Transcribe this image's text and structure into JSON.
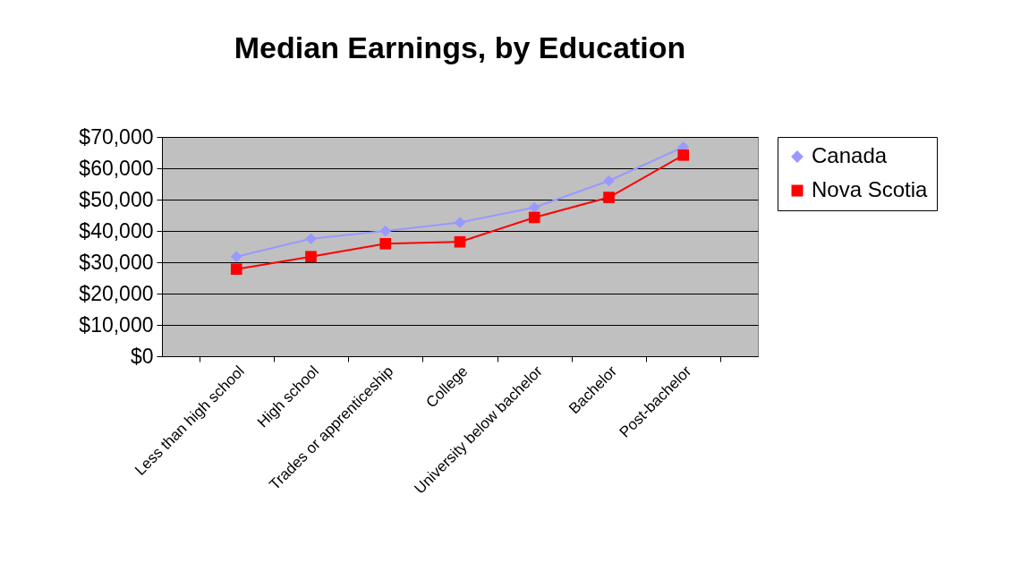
{
  "chart_data": {
    "type": "line",
    "title": "Median Earnings, by Education",
    "categories": [
      "Less than high school",
      "High school",
      "Trades or apprenticeship",
      "College",
      "University below bachelor",
      "Bachelor",
      "Post-bachelor"
    ],
    "series": [
      {
        "name": "Canada",
        "color": "#9999ff",
        "marker": "diamond",
        "values": [
          31800,
          37500,
          40000,
          42700,
          47500,
          56000,
          66800
        ]
      },
      {
        "name": "Nova Scotia",
        "color": "#ff0000",
        "marker": "square",
        "values": [
          27800,
          31800,
          35900,
          36500,
          44300,
          50700,
          64200
        ]
      }
    ],
    "ylim": [
      0,
      70000
    ],
    "yticks": [
      {
        "value": 0,
        "label": "$0"
      },
      {
        "value": 10000,
        "label": "$10,000"
      },
      {
        "value": 20000,
        "label": "$20,000"
      },
      {
        "value": 30000,
        "label": "$30,000"
      },
      {
        "value": 40000,
        "label": "$40,000"
      },
      {
        "value": 50000,
        "label": "$50,000"
      },
      {
        "value": 60000,
        "label": "$60,000"
      },
      {
        "value": 70000,
        "label": "$70,000"
      }
    ],
    "grid": "y",
    "legend": "right",
    "line_style": "solid"
  }
}
